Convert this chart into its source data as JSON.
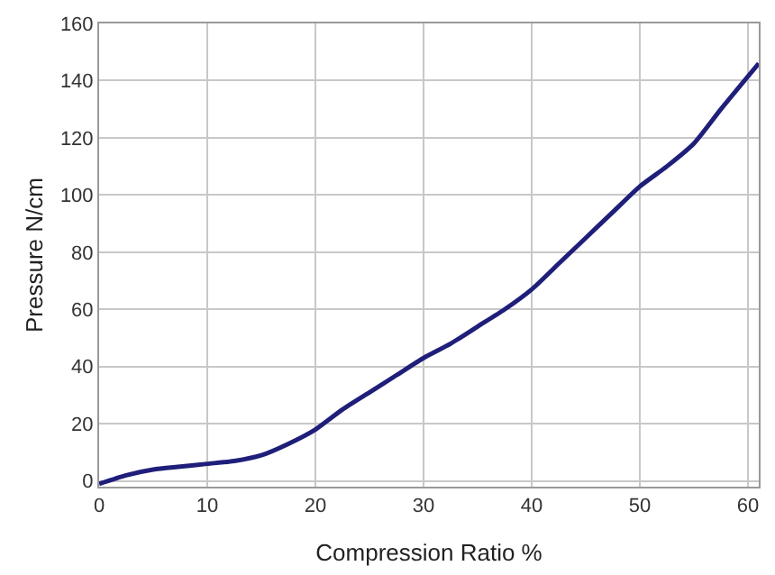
{
  "chart_data": {
    "type": "line",
    "xlabel": "Compression Ratio %",
    "ylabel": "Pressure N/cm",
    "x": [
      0,
      2.5,
      5,
      7.5,
      10,
      12.5,
      15,
      17.5,
      20,
      22.5,
      25,
      27.5,
      30,
      32.5,
      35,
      37.5,
      40,
      42.5,
      45,
      47.5,
      50,
      52.5,
      55,
      57.5,
      61
    ],
    "series": [
      {
        "color": "#1f1f7a",
        "values": [
          -1,
          2,
          4,
          5,
          6,
          7,
          9,
          13,
          18,
          25,
          31,
          37,
          43,
          48,
          54,
          60,
          67,
          76,
          85,
          94,
          103,
          110,
          118,
          130,
          146
        ]
      }
    ],
    "xlim": [
      0,
      61
    ],
    "xticks": [
      0,
      10,
      20,
      30,
      40,
      50,
      60
    ],
    "ylim": [
      -2,
      160
    ],
    "yticks": [
      0,
      20,
      40,
      60,
      80,
      100,
      120,
      140,
      160
    ],
    "grid": true,
    "legend": false,
    "marker": "none",
    "line_style": "solid"
  }
}
